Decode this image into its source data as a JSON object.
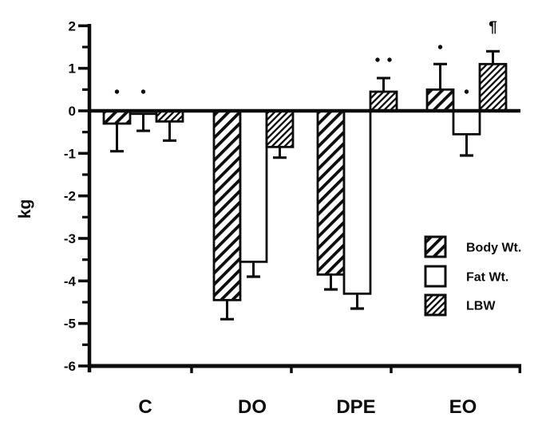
{
  "figure": {
    "kind": "scanned bar chart from a paper",
    "background_color": "#ffffff",
    "ink_color": "#0c0c0c"
  },
  "chart_data": {
    "type": "bar",
    "title": "",
    "xlabel": "",
    "ylabel": "kg",
    "ylim": [
      -6,
      2
    ],
    "ytick_major_step": 1,
    "ytick_minor_step": 0.5,
    "ytick_labels": [
      "2",
      "1",
      "0",
      "-1",
      "-2",
      "-3",
      "-4",
      "-5",
      "-6"
    ],
    "ytick_values": [
      2,
      1,
      0,
      -1,
      -2,
      -3,
      -4,
      -5,
      -6
    ],
    "categories": [
      "C",
      "DO",
      "DPE",
      "EO"
    ],
    "grid": false,
    "error_bars": "one-sided, drawn outward from bar end",
    "legend_position": "inside lower right",
    "series": [
      {
        "name": "Body Wt.",
        "style": "hatch-wide",
        "values": [
          -0.3,
          -4.45,
          -3.85,
          0.5
        ],
        "errors": [
          0.65,
          0.45,
          0.35,
          0.6
        ],
        "sig_markers": [
          "*",
          "",
          "",
          "*"
        ],
        "sig_marker_y": [
          0.45,
          null,
          null,
          1.5
        ]
      },
      {
        "name": "Fat Wt.",
        "style": "open",
        "values": [
          -0.07,
          -3.55,
          -4.3,
          -0.55
        ],
        "errors": [
          0.4,
          0.35,
          0.35,
          0.5
        ],
        "sig_markers": [
          "*",
          "",
          "",
          "*"
        ],
        "sig_marker_y": [
          0.45,
          null,
          null,
          0.45
        ]
      },
      {
        "name": "LBW",
        "style": "hatch-dense",
        "values": [
          -0.25,
          -0.85,
          0.45,
          1.1
        ],
        "errors": [
          0.45,
          0.25,
          0.32,
          0.3
        ],
        "sig_markers": [
          "",
          "",
          "**",
          "¶"
        ],
        "sig_marker_y": [
          null,
          null,
          1.2,
          1.95
        ]
      }
    ]
  }
}
